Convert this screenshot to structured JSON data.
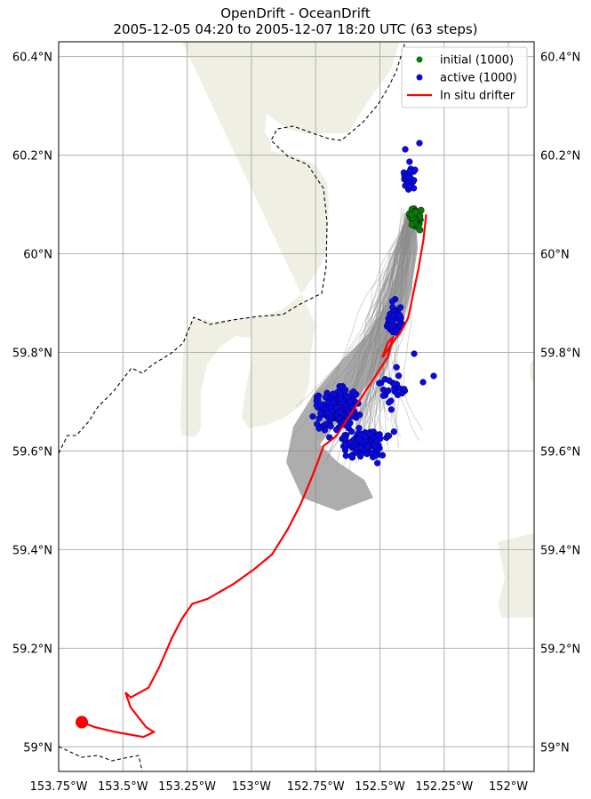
{
  "title": {
    "line1": "OpenDrift - OceanDrift",
    "line2": "2005-12-05 04:20 to 2005-12-07 18:20 UTC (63 steps)"
  },
  "map": {
    "lon_range": [
      -153.75,
      -151.9
    ],
    "lat_range": [
      58.95,
      60.43
    ],
    "lon_ticks": [
      -153.75,
      -153.5,
      -153.25,
      -153.0,
      -152.75,
      -152.5,
      -152.25,
      -152.0
    ],
    "lon_labels": [
      "153.75°W",
      "153.5°W",
      "153.25°W",
      "153°W",
      "152.75°W",
      "152.5°W",
      "152.25°W",
      "152°W"
    ],
    "lat_ticks": [
      59.0,
      59.2,
      59.4,
      59.6,
      59.8,
      60.0,
      60.2,
      60.4
    ],
    "lat_labels": [
      "59°N",
      "59.2°N",
      "59.4°N",
      "59.6°N",
      "59.8°N",
      "60°N",
      "60.2°N",
      "60.4°N"
    ],
    "grid": true,
    "colors": {
      "land": "#efefe4",
      "ocean": "#ffffff",
      "grid": "#b0b0b0",
      "trajectory": "#8a8a8a",
      "initial": "#0a7a0a",
      "active": "#0a0ae0",
      "drifter": "#ff0000",
      "border": "#000000"
    }
  },
  "legend": {
    "position": "upper-right",
    "items": [
      {
        "label": "initial (1000)",
        "marker": "dot",
        "color": "#0a7a0a"
      },
      {
        "label": "active (1000)",
        "marker": "dot",
        "color": "#0a0ae0"
      },
      {
        "label": "In situ drifter",
        "marker": "line",
        "color": "#ff0000"
      }
    ]
  },
  "drifter_track": [
    [
      -152.32,
      60.08
    ],
    [
      -152.33,
      60.03
    ],
    [
      -152.35,
      59.97
    ],
    [
      -152.37,
      59.92
    ],
    [
      -152.39,
      59.87
    ],
    [
      -152.42,
      59.84
    ],
    [
      -152.45,
      59.82
    ],
    [
      -152.49,
      59.79
    ],
    [
      -152.47,
      59.82
    ],
    [
      -152.45,
      59.83
    ],
    [
      -152.47,
      59.79
    ],
    [
      -152.52,
      59.75
    ],
    [
      -152.57,
      59.71
    ],
    [
      -152.62,
      59.67
    ],
    [
      -152.67,
      59.63
    ],
    [
      -152.72,
      59.61
    ],
    [
      -152.74,
      59.58
    ],
    [
      -152.77,
      59.54
    ],
    [
      -152.81,
      59.49
    ],
    [
      -152.86,
      59.44
    ],
    [
      -152.92,
      59.39
    ],
    [
      -152.99,
      59.36
    ],
    [
      -153.07,
      59.33
    ],
    [
      -153.17,
      59.3
    ],
    [
      -153.23,
      59.29
    ],
    [
      -153.27,
      59.26
    ],
    [
      -153.31,
      59.22
    ],
    [
      -153.36,
      59.16
    ],
    [
      -153.4,
      59.12
    ],
    [
      -153.47,
      59.1
    ],
    [
      -153.49,
      59.11
    ],
    [
      -153.47,
      59.08
    ],
    [
      -153.41,
      59.04
    ],
    [
      -153.38,
      59.03
    ],
    [
      -153.42,
      59.02
    ],
    [
      -153.53,
      59.03
    ],
    [
      -153.61,
      59.04
    ],
    [
      -153.66,
      59.05
    ]
  ],
  "drifter_end": [
    -153.66,
    59.05
  ]
}
